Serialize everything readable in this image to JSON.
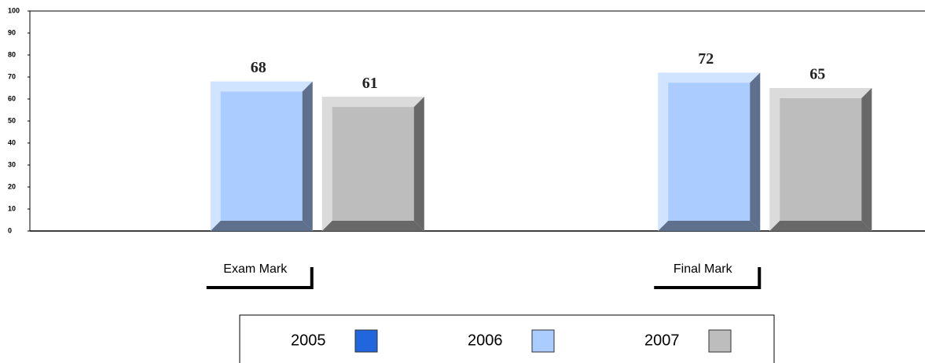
{
  "chart_data": {
    "type": "bar",
    "categories": [
      "Exam Mark",
      "Final Mark"
    ],
    "series": [
      {
        "name": "2005",
        "color": "#2266dd",
        "values": [
          null,
          null
        ]
      },
      {
        "name": "2006",
        "color": "#aaccff",
        "values": [
          68,
          72
        ]
      },
      {
        "name": "2007",
        "color": "#bdbdbd",
        "values": [
          61,
          65
        ]
      }
    ],
    "ylim": [
      0,
      100
    ],
    "yticks": [
      0,
      10,
      20,
      30,
      40,
      50,
      60,
      70,
      80,
      90,
      100
    ]
  }
}
